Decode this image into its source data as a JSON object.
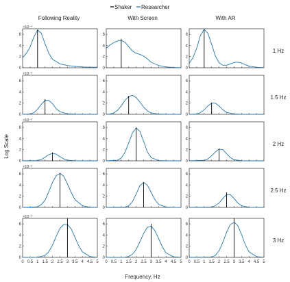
{
  "legend": [
    {
      "label": "Shaker",
      "color": "#000000"
    },
    {
      "label": "Researcher",
      "color": "#1f77b4"
    }
  ],
  "columns": [
    "Following Reality",
    "With Screen",
    "With AR"
  ],
  "rows": [
    "1 Hz",
    "1.5 Hz",
    "2 Hz",
    "2.5 Hz",
    "3 Hz"
  ],
  "row_exponents": [
    "×10⁻⁴",
    "×10⁻³",
    "×10⁻³",
    "×10⁻³",
    "×10⁻³"
  ],
  "xlabel": "Frequency, Hz",
  "ylabel": "Log Scale",
  "chart_data": {
    "type": "line",
    "xlim": [
      0,
      5
    ],
    "ylim": [
      0,
      7
    ],
    "x_ticks": [
      "0",
      "0.5",
      "1",
      "1.5",
      "2",
      "2.5",
      "3",
      "3.5",
      "4",
      "4.5",
      "5"
    ],
    "y_ticks": [
      "0",
      "2",
      "4",
      "6"
    ],
    "shaker_frequencies": [
      1,
      1.5,
      2,
      2.5,
      3
    ],
    "panels": [
      [
        {
          "shaker_height": 6.8,
          "researcher": {
            "x": [
              0,
              0.25,
              0.5,
              0.75,
              1,
              1.25,
              1.5,
              1.75,
              2,
              2.5,
              3,
              3.5,
              4,
              4.5,
              5
            ],
            "y": [
              1.8,
              2.6,
              3.7,
              5.5,
              6.8,
              6.2,
              4.3,
              2.6,
              1.5,
              0.7,
              0.4,
              0.25,
              0.15,
              0.1,
              0.1
            ]
          }
        },
        {
          "shaker_height": 5.2,
          "researcher": {
            "x": [
              0,
              0.25,
              0.5,
              0.75,
              1,
              1.25,
              1.5,
              1.75,
              2,
              2.25,
              2.5,
              2.75,
              3,
              3.5,
              4,
              4.5,
              5
            ],
            "y": [
              3.5,
              4.1,
              4.5,
              4.8,
              4.9,
              4.6,
              3.8,
              3.0,
              2.6,
              2.4,
              2.1,
              1.6,
              1.0,
              0.4,
              0.15,
              0.05,
              0.0
            ]
          }
        },
        {
          "shaker_height": 6.8,
          "researcher": {
            "x": [
              0,
              0.25,
              0.5,
              0.75,
              1,
              1.25,
              1.5,
              1.75,
              2,
              2.25,
              2.5,
              2.75,
              3,
              3.25,
              3.5,
              3.75,
              4,
              4.5,
              5
            ],
            "y": [
              0.8,
              1.8,
              3.5,
              5.8,
              6.9,
              6.2,
              4.2,
              2.1,
              0.9,
              0.45,
              0.45,
              0.7,
              0.95,
              1.0,
              0.85,
              0.55,
              0.3,
              0.08,
              0.02
            ]
          }
        }
      ],
      [
        {
          "shaker_height": 2.7,
          "researcher": {
            "x": [
              0,
              0.5,
              0.75,
              1,
              1.25,
              1.5,
              1.75,
              2,
              2.25,
              2.5,
              3,
              3.5,
              4,
              5
            ],
            "y": [
              0.0,
              0.05,
              0.3,
              0.9,
              1.8,
              2.5,
              2.5,
              1.9,
              1.0,
              0.45,
              0.1,
              0.03,
              0.0,
              0.0
            ]
          }
        },
        {
          "shaker_height": 3.3,
          "researcher": {
            "x": [
              0,
              0.25,
              0.5,
              0.75,
              1,
              1.25,
              1.5,
              1.75,
              2,
              2.25,
              2.5,
              2.75,
              3,
              3.5,
              4,
              5
            ],
            "y": [
              0.0,
              0.05,
              0.25,
              0.7,
              1.5,
              2.5,
              3.2,
              3.4,
              3.0,
              2.2,
              1.3,
              0.6,
              0.25,
              0.05,
              0.0,
              0.0
            ]
          }
        },
        {
          "shaker_height": 2.1,
          "researcher": {
            "x": [
              0,
              0.5,
              0.75,
              1,
              1.25,
              1.5,
              1.75,
              2,
              2.25,
              2.5,
              3,
              3.5,
              4,
              5
            ],
            "y": [
              0.0,
              0.05,
              0.3,
              0.8,
              1.5,
              2.0,
              2.0,
              1.5,
              0.8,
              0.35,
              0.06,
              0.01,
              0.0,
              0.0
            ]
          }
        }
      ],
      [
        {
          "shaker_height": 1.5,
          "researcher": {
            "x": [
              0,
              1,
              1.25,
              1.5,
              1.75,
              2,
              2.25,
              2.5,
              2.75,
              3,
              3.5,
              4,
              5
            ],
            "y": [
              0.0,
              0.05,
              0.25,
              0.65,
              1.1,
              1.35,
              1.2,
              0.75,
              0.35,
              0.12,
              0.02,
              0.0,
              0.0
            ]
          }
        },
        {
          "shaker_height": 6.0,
          "researcher": {
            "x": [
              0,
              0.75,
              1,
              1.25,
              1.5,
              1.75,
              2,
              2.25,
              2.5,
              2.75,
              3,
              3.5,
              4,
              5
            ],
            "y": [
              0.0,
              0.1,
              0.5,
              1.5,
              3.2,
              5.0,
              5.9,
              5.3,
              3.5,
              1.6,
              0.6,
              0.05,
              0.0,
              0.0
            ]
          }
        },
        {
          "shaker_height": 2.2,
          "researcher": {
            "x": [
              0,
              1,
              1.25,
              1.5,
              1.75,
              2,
              2.25,
              2.5,
              2.75,
              3,
              3.5,
              4,
              5
            ],
            "y": [
              0.0,
              0.1,
              0.35,
              0.9,
              1.6,
              2.1,
              2.0,
              1.3,
              0.6,
              0.2,
              0.02,
              0.0,
              0.0
            ]
          }
        }
      ],
      [
        {
          "shaker_height": 6.2,
          "researcher": {
            "x": [
              0,
              1,
              1.25,
              1.5,
              1.75,
              2,
              2.25,
              2.5,
              2.75,
              3,
              3.25,
              3.5,
              4,
              4.5,
              5
            ],
            "y": [
              0.0,
              0.1,
              0.5,
              1.3,
              2.8,
              4.5,
              5.7,
              6.1,
              5.6,
              4.2,
              2.7,
              1.4,
              0.3,
              0.03,
              0.0
            ]
          }
        },
        {
          "shaker_height": 4.5,
          "researcher": {
            "x": [
              0,
              1.25,
              1.5,
              1.75,
              2,
              2.25,
              2.5,
              2.75,
              3,
              3.25,
              3.5,
              4,
              4.5,
              5
            ],
            "y": [
              0.0,
              0.05,
              0.3,
              1.0,
              2.4,
              3.9,
              4.5,
              4.0,
              2.7,
              1.4,
              0.55,
              0.05,
              0.0,
              0.0
            ]
          }
        },
        {
          "shaker_height": 2.7,
          "researcher": {
            "x": [
              0,
              1.5,
              1.75,
              2,
              2.25,
              2.5,
              2.75,
              3,
              3.25,
              3.5,
              4,
              4.5,
              5
            ],
            "y": [
              0.0,
              0.05,
              0.3,
              0.8,
              1.6,
              2.3,
              2.3,
              1.6,
              0.8,
              0.3,
              0.02,
              0.0,
              0.0
            ]
          }
        }
      ],
      [
        {
          "shaker_height": 7.0,
          "researcher": {
            "x": [
              0,
              1,
              1.5,
              1.75,
              2,
              2.25,
              2.5,
              2.75,
              3,
              3.25,
              3.5,
              3.75,
              4,
              4.5,
              5
            ],
            "y": [
              0.0,
              0.02,
              0.35,
              1.0,
              2.2,
              3.8,
              5.2,
              5.9,
              5.9,
              5.1,
              3.6,
              2.1,
              1.0,
              0.15,
              0.0
            ]
          }
        },
        {
          "shaker_height": 6.0,
          "researcher": {
            "x": [
              0,
              1.25,
              1.5,
              1.75,
              2,
              2.25,
              2.5,
              2.75,
              3,
              3.25,
              3.5,
              3.75,
              4,
              4.5,
              5
            ],
            "y": [
              0.0,
              0.02,
              0.15,
              0.55,
              1.4,
              2.8,
              4.3,
              5.4,
              5.6,
              4.8,
              3.4,
              1.9,
              0.8,
              0.1,
              0.0
            ]
          }
        },
        {
          "shaker_height": 7.0,
          "researcher": {
            "x": [
              0,
              1.5,
              1.75,
              2,
              2.25,
              2.5,
              2.75,
              3,
              3.25,
              3.5,
              3.75,
              4,
              4.5,
              5
            ],
            "y": [
              0.0,
              0.05,
              0.35,
              1.2,
              2.7,
              4.5,
              5.9,
              6.3,
              5.7,
              4.1,
              2.3,
              1.0,
              0.15,
              0.0
            ]
          }
        }
      ]
    ]
  }
}
